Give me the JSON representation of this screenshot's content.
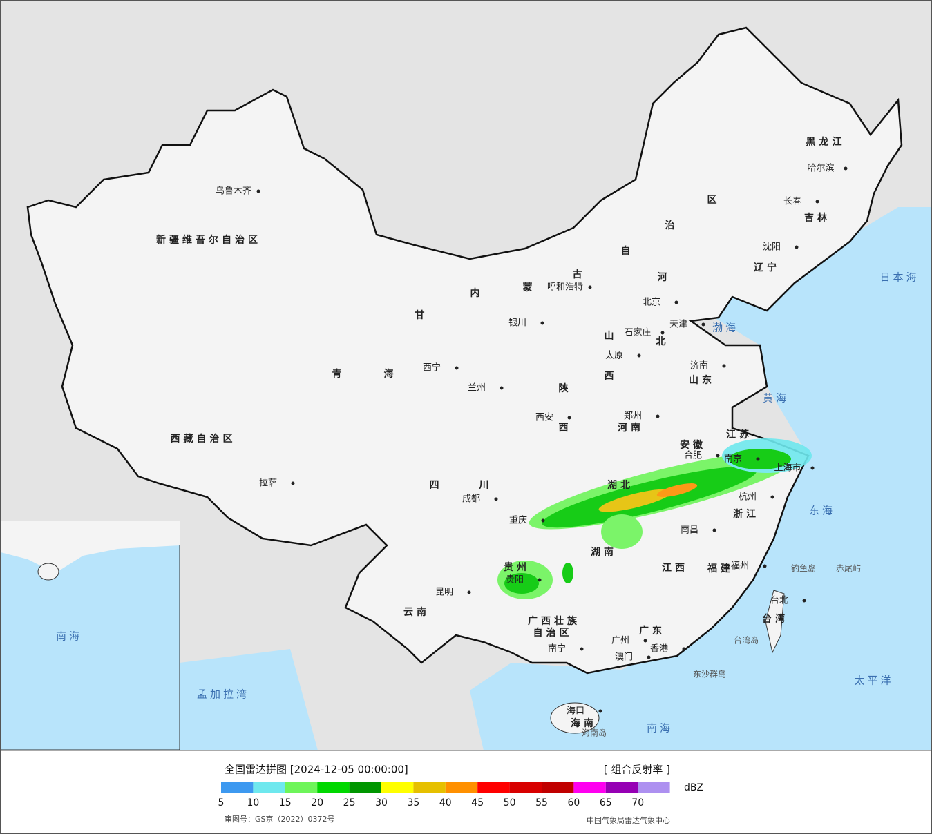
{
  "title": "全国雷达拼图 [2024-12-05 00:00:00]",
  "product": "[ 组合反射率 ]",
  "unit": "dBZ",
  "legend": {
    "colors": [
      "#3d99f0",
      "#6ee8ee",
      "#6ef55a",
      "#00d800",
      "#009600",
      "#ffff00",
      "#e6c000",
      "#ff9000",
      "#ff0000",
      "#d80000",
      "#c00000",
      "#ff00f0",
      "#9600b4",
      "#ad90f0"
    ],
    "ticks": [
      5,
      10,
      15,
      20,
      25,
      30,
      35,
      40,
      45,
      50,
      55,
      60,
      65,
      70
    ]
  },
  "approval": "审图号：GS京（2022）0372号",
  "source": "中国气象局雷达气象中心",
  "labels": [
    "新疆维吾尔自治区",
    "乌鲁木齐",
    "西藏自治区",
    "拉萨",
    "青",
    "海",
    "西宁",
    "甘",
    "内",
    "蒙",
    "古",
    "自",
    "治",
    "区",
    "呼和浩特",
    "银川",
    "兰州",
    "陕",
    "西",
    "西安",
    "山",
    "西",
    "太原",
    "石家庄",
    "北京",
    "天津",
    "河",
    "北",
    "山东",
    "济南",
    "河南",
    "郑州",
    "四",
    "川",
    "成都",
    "重庆",
    "贵州",
    "贵阳",
    "云南",
    "昆明",
    "广西壮族",
    "自治区",
    "南宁",
    "广东",
    "广州",
    "湖北",
    "湖南",
    "江西",
    "南昌",
    "安徽",
    "合肥",
    "江苏",
    "南京",
    "上海市",
    "杭州",
    "浙江",
    "福建",
    "福州",
    "台北",
    "台湾",
    "黑龙江",
    "哈尔滨",
    "吉林",
    "长春",
    "辽宁",
    "沈阳",
    "香港",
    "澳门",
    "海口",
    "海南",
    "日本海",
    "渤海",
    "黄海",
    "东海",
    "太平洋",
    "南海",
    "孟加拉湾",
    "钓鱼岛",
    "赤尾屿",
    "台湾岛",
    "东沙群岛",
    "海南岛",
    "南海"
  ]
}
